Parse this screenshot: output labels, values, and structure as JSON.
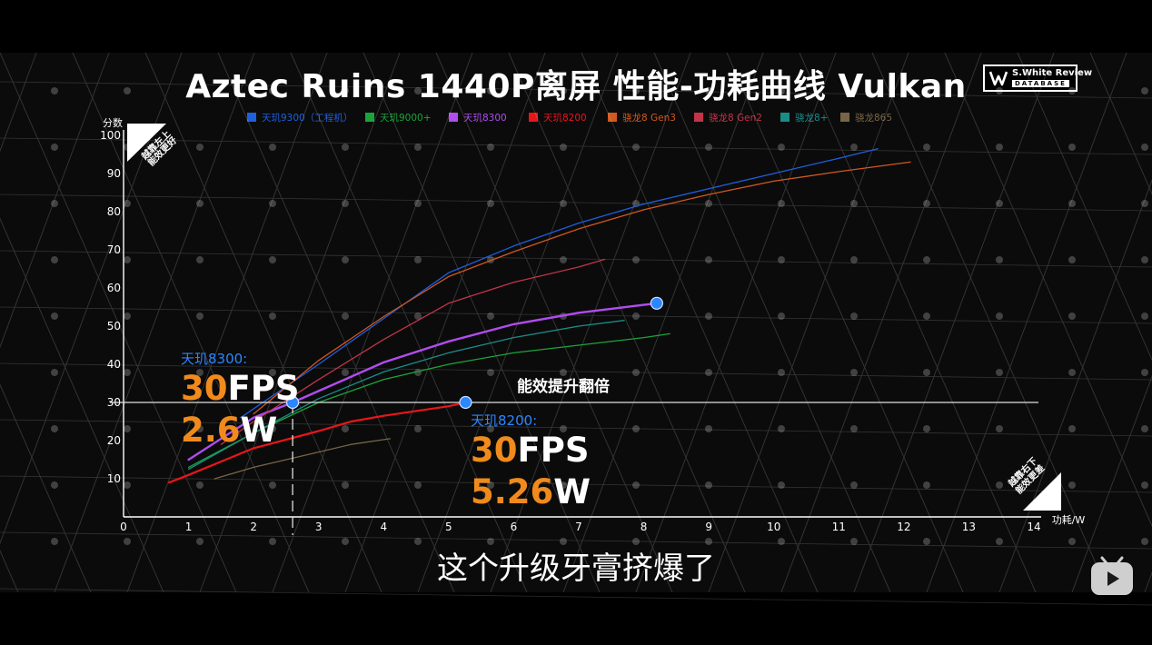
{
  "title": "Aztec Ruins 1440P离屏 性能-功耗曲线 Vulkan",
  "logo": {
    "line1": "S.White Review",
    "line2": "DATABASE"
  },
  "subtitle": "这个升级牙膏挤爆了",
  "corner_top": {
    "line1": "越靠左上",
    "line2": "能效更好"
  },
  "corner_bottom": {
    "line1": "越靠右下",
    "line2": "能效更差"
  },
  "midline_label": "能效提升翻倍",
  "annotation_left": {
    "label": "天玑8300:",
    "fps_num": "30",
    "fps_unit": "FPS",
    "watt_num": "2.6",
    "watt_unit": "W"
  },
  "annotation_right": {
    "label": "天玑8200:",
    "fps_num": "30",
    "fps_unit": "FPS",
    "watt_num": "5.26",
    "watt_unit": "W"
  },
  "chart_data": {
    "type": "line",
    "title": "Aztec Ruins 1440P离屏 性能-功耗曲线 Vulkan",
    "xlabel": "功耗/W",
    "ylabel": "分数",
    "xlim": [
      0,
      14
    ],
    "ylim": [
      0,
      100
    ],
    "x_ticks": [
      0,
      1,
      2,
      3,
      4,
      5,
      6,
      7,
      8,
      9,
      10,
      11,
      12,
      13,
      14
    ],
    "y_ticks": [
      10,
      20,
      30,
      40,
      50,
      60,
      70,
      80,
      90,
      100
    ],
    "legend_position": "top",
    "series": [
      {
        "name": "天玑9300（工程机）",
        "color": "#1f5fe0",
        "width": 1.3,
        "points": [
          [
            1.8,
            26
          ],
          [
            3,
            40
          ],
          [
            4,
            52
          ],
          [
            5,
            64
          ],
          [
            6,
            71
          ],
          [
            7,
            77
          ],
          [
            8,
            82
          ],
          [
            9,
            86
          ],
          [
            10,
            90
          ],
          [
            11,
            94
          ],
          [
            11.6,
            96.5
          ]
        ]
      },
      {
        "name": "天玑9000+",
        "color": "#1aa53b",
        "width": 1.3,
        "points": [
          [
            1,
            13
          ],
          [
            2,
            22
          ],
          [
            3,
            30
          ],
          [
            4,
            36
          ],
          [
            5,
            40
          ],
          [
            6,
            43
          ],
          [
            7,
            45
          ],
          [
            8,
            47
          ],
          [
            8.4,
            48
          ]
        ]
      },
      {
        "name": "天玑8300",
        "color": "#b14cf0",
        "width": 2.4,
        "points": [
          [
            1,
            15
          ],
          [
            2,
            26
          ],
          [
            2.6,
            30
          ],
          [
            3,
            33
          ],
          [
            4,
            40.5
          ],
          [
            5,
            46
          ],
          [
            6,
            50.5
          ],
          [
            7,
            53.5
          ],
          [
            8.2,
            56
          ]
        ]
      },
      {
        "name": "天玑8200",
        "color": "#e8161b",
        "width": 2.2,
        "points": [
          [
            0.7,
            9
          ],
          [
            1,
            11
          ],
          [
            2,
            18
          ],
          [
            3,
            22.5
          ],
          [
            3.5,
            25
          ],
          [
            4,
            26.5
          ],
          [
            5,
            29
          ],
          [
            5.26,
            30
          ]
        ]
      },
      {
        "name": "骁龙8 Gen3",
        "color": "#d2581e",
        "width": 1.3,
        "points": [
          [
            2,
            27
          ],
          [
            3,
            41
          ],
          [
            4,
            52.5
          ],
          [
            5,
            63
          ],
          [
            6,
            69.5
          ],
          [
            7,
            75.5
          ],
          [
            8,
            80.5
          ],
          [
            9,
            84.5
          ],
          [
            10,
            88
          ],
          [
            11,
            90.5
          ],
          [
            12.1,
            93
          ]
        ]
      },
      {
        "name": "骁龙8 Gen2",
        "color": "#c2344a",
        "width": 1.3,
        "points": [
          [
            1.5,
            19
          ],
          [
            2,
            25
          ],
          [
            3,
            36
          ],
          [
            4,
            46.5
          ],
          [
            5,
            56
          ],
          [
            6,
            61.5
          ],
          [
            7,
            65.5
          ],
          [
            7.4,
            67.5
          ]
        ]
      },
      {
        "name": "骁龙8+",
        "color": "#1a8d88",
        "width": 1.3,
        "points": [
          [
            1,
            12.5
          ],
          [
            2,
            22
          ],
          [
            3,
            31
          ],
          [
            4,
            38
          ],
          [
            5,
            43
          ],
          [
            6,
            47
          ],
          [
            7,
            50
          ],
          [
            7.7,
            51.5
          ]
        ]
      },
      {
        "name": "骁龙865",
        "color": "#7a6448",
        "width": 1.3,
        "points": [
          [
            1.4,
            10
          ],
          [
            2,
            13
          ],
          [
            3,
            17
          ],
          [
            3.5,
            19
          ],
          [
            4.1,
            20.5
          ]
        ]
      }
    ],
    "highlight_points": [
      [
        2.6,
        30
      ],
      [
        5.26,
        30
      ],
      [
        8.2,
        56
      ]
    ],
    "reference_line_y": 30,
    "reference_line_x": 2.6
  }
}
